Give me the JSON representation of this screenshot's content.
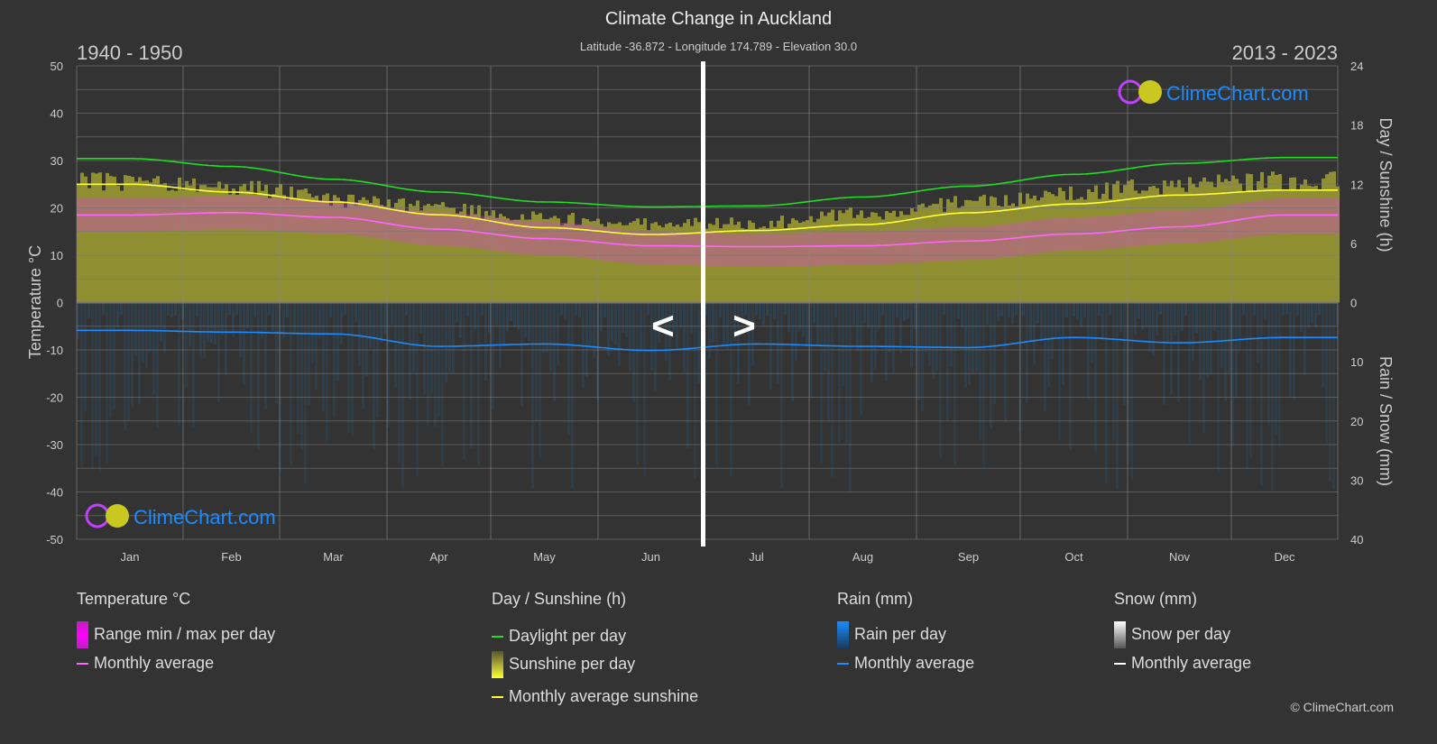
{
  "header": {
    "title": "Climate Change in Auckland",
    "subtitle": "Latitude -36.872 - Longitude 174.789 - Elevation 30.0",
    "period_left": "1940 - 1950",
    "period_right": "2013 - 2023"
  },
  "nav": {
    "prev_label": "<",
    "next_label": ">"
  },
  "watermark": "ClimeChart.com",
  "copyright": "© ClimeChart.com",
  "chart_data": {
    "type": "area",
    "months": [
      "Jan",
      "Feb",
      "Mar",
      "Apr",
      "May",
      "Jun",
      "Jul",
      "Aug",
      "Sep",
      "Oct",
      "Nov",
      "Dec"
    ],
    "y_left": {
      "label": "Temperature °C",
      "range": [
        -50,
        50
      ],
      "ticks": [
        50,
        40,
        30,
        20,
        10,
        0,
        -10,
        -20,
        -30,
        -40,
        -50
      ]
    },
    "y_right_top": {
      "label": "Day / Sunshine (h)",
      "range": [
        0,
        24
      ],
      "ticks": [
        24,
        18,
        12,
        6,
        0
      ]
    },
    "y_right_bottom": {
      "label": "Rain / Snow (mm)",
      "range": [
        0,
        40
      ],
      "ticks": [
        0,
        10,
        20,
        30,
        40
      ]
    },
    "grid": true,
    "colors": {
      "temp_range": "#e040e0",
      "temp_avg": "#ff66ff",
      "daylight": "#22dd22",
      "sunshine": "#c8c832",
      "sunshine_avg": "#ffff33",
      "rain": "#1a8cff",
      "rain_avg": "#1a8cff",
      "snow": "#ffffff"
    },
    "series": [
      {
        "name": "Monthly average",
        "group": "Temperature °C",
        "values": [
          18.5,
          19.0,
          18.0,
          15.5,
          13.5,
          12.0,
          11.8,
          12.0,
          13.0,
          14.5,
          16.0,
          18.5
        ]
      },
      {
        "name": "Range min / max per day",
        "group": "Temperature °C",
        "min": [
          15,
          15.5,
          14.5,
          12,
          10,
          8,
          7.5,
          8,
          9,
          11,
          12.5,
          14.5
        ],
        "max": [
          22,
          22.5,
          21.5,
          19,
          17,
          15,
          14.5,
          15,
          16,
          18,
          19.5,
          22
        ]
      },
      {
        "name": "Daylight per day",
        "group": "Day / Sunshine (h)",
        "values": [
          14.6,
          13.8,
          12.5,
          11.2,
          10.2,
          9.7,
          9.8,
          10.7,
          11.8,
          13.0,
          14.1,
          14.7
        ]
      },
      {
        "name": "Sunshine per day",
        "group": "Day / Sunshine (h)",
        "values": [
          13.3,
          12.8,
          11.3,
          10.3,
          9.2,
          8.6,
          8.7,
          9.7,
          11.0,
          12.0,
          13.0,
          13.3
        ]
      },
      {
        "name": "Monthly average sunshine",
        "group": "Day / Sunshine (h)",
        "values": [
          12.0,
          11.2,
          10.2,
          8.9,
          7.6,
          6.9,
          7.3,
          7.9,
          9.1,
          10.0,
          10.9,
          11.4
        ]
      },
      {
        "name": "Monthly average",
        "group": "Rain (mm)",
        "values": [
          4.7,
          5.0,
          5.3,
          7.4,
          7.0,
          8.1,
          7.0,
          7.4,
          7.6,
          5.9,
          6.8,
          5.9
        ]
      }
    ],
    "legend": {
      "placement": "bottom",
      "groups": [
        {
          "title": "Temperature °C",
          "items": [
            "Range min / max per day",
            "Monthly average"
          ]
        },
        {
          "title": "Day / Sunshine (h)",
          "items": [
            "Daylight per day",
            "Sunshine per day",
            "Monthly average sunshine"
          ]
        },
        {
          "title": "Rain (mm)",
          "items": [
            "Rain per day",
            "Monthly average"
          ]
        },
        {
          "title": "Snow (mm)",
          "items": [
            "Snow per day",
            "Monthly average"
          ]
        }
      ]
    }
  }
}
